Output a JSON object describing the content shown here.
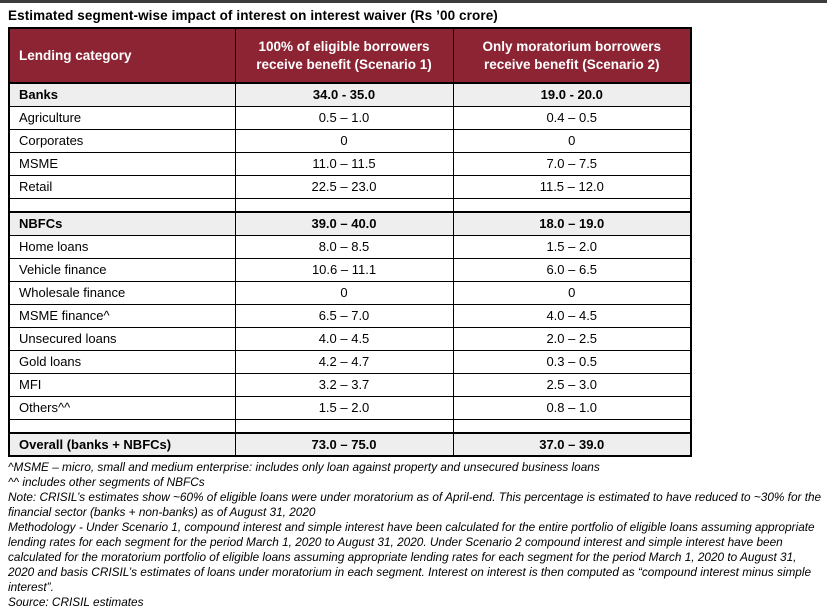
{
  "title": "Estimated segment-wise impact of interest on interest waiver (Rs ’00 crore)",
  "colors": {
    "header_bg": "#8c2433",
    "header_text": "#ffffff",
    "section_row_bg": "#eeeeee",
    "border": "#000000",
    "top_strip": "#3d3b3b",
    "page_bg": "#ffffff"
  },
  "table": {
    "headers": [
      "Lending category",
      "100% of eligible borrowers receive benefit (Scenario 1)",
      "Only moratorium borrowers receive benefit (Scenario 2)"
    ],
    "rows": [
      {
        "label": "Banks",
        "s1": "34.0 - 35.0",
        "s2": "19.0 - 20.0",
        "style": "section"
      },
      {
        "label": "Agriculture",
        "s1": "0.5 – 1.0",
        "s2": "0.4 – 0.5",
        "style": "normal"
      },
      {
        "label": "Corporates",
        "s1": "0",
        "s2": "0",
        "style": "normal"
      },
      {
        "label": "MSME",
        "s1": "11.0 – 11.5",
        "s2": "7.0 – 7.5",
        "style": "normal"
      },
      {
        "label": "Retail",
        "s1": "22.5 – 23.0",
        "s2": "11.5 – 12.0",
        "style": "normal"
      },
      {
        "label": "",
        "s1": "",
        "s2": "",
        "style": "spacer"
      },
      {
        "label": "NBFCs",
        "s1": "39.0 – 40.0",
        "s2": "18.0 – 19.0",
        "style": "section"
      },
      {
        "label": "Home loans",
        "s1": "8.0 – 8.5",
        "s2": "1.5 – 2.0",
        "style": "normal"
      },
      {
        "label": "Vehicle finance",
        "s1": "10.6 – 11.1",
        "s2": "6.0 – 6.5",
        "style": "normal"
      },
      {
        "label": "Wholesale finance",
        "s1": "0",
        "s2": "0",
        "style": "normal"
      },
      {
        "label": "MSME finance^",
        "s1": "6.5 – 7.0",
        "s2": "4.0 – 4.5",
        "style": "normal"
      },
      {
        "label": "Unsecured loans",
        "s1": "4.0 – 4.5",
        "s2": "2.0 – 2.5",
        "style": "normal"
      },
      {
        "label": "Gold loans",
        "s1": "4.2 – 4.7",
        "s2": "0.3 – 0.5",
        "style": "normal"
      },
      {
        "label": "MFI",
        "s1": "3.2 – 3.7",
        "s2": "2.5 – 3.0",
        "style": "normal"
      },
      {
        "label": "Others^^",
        "s1": "1.5 – 2.0",
        "s2": "0.8 – 1.0",
        "style": "normal"
      },
      {
        "label": "",
        "s1": "",
        "s2": "",
        "style": "spacer"
      },
      {
        "label": "Overall (banks + NBFCs)",
        "s1": "73.0 – 75.0",
        "s2": "37.0 – 39.0",
        "style": "total"
      }
    ]
  },
  "footnotes": [
    "^MSME – micro, small and medium enterprise: includes only loan against property and unsecured business loans",
    "^^ includes other segments of NBFCs",
    "Note: CRISIL’s estimates show ~60% of eligible loans were under moratorium as of April-end. This percentage is estimated to have reduced to ~30% for the financial sector (banks + non-banks) as of August 31, 2020",
    "Methodology - Under Scenario 1, compound interest and simple interest have been calculated for the entire portfolio of eligible loans assuming appropriate lending rates for each segment for the period March 1, 2020 to August 31, 2020. Under Scenario 2 compound interest and simple interest have been calculated for the moratorium portfolio of eligible loans assuming appropriate lending rates for each segment for the period March 1, 2020 to August 31, 2020 and basis CRISIL’s estimates of loans under moratorium in each segment. Interest on interest is then computed as “compound interest minus simple interest”.",
    "Source: CRISIL estimates"
  ]
}
